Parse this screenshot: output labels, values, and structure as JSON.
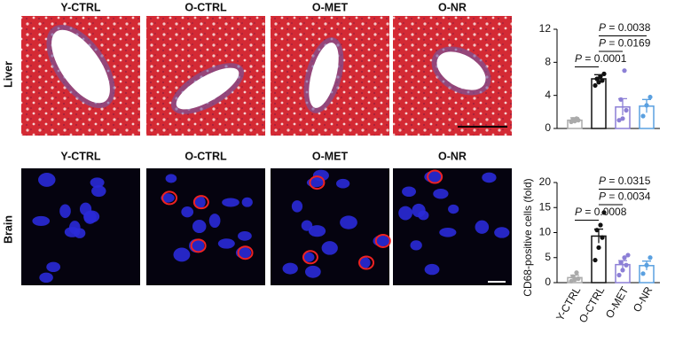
{
  "image_panels": {
    "liver_row": "Liver",
    "brain_row": "Brain",
    "liver_columns": [
      "Y-CTRL",
      "O-CTRL",
      "O-MET",
      "O-NR"
    ],
    "brain_columns": [
      "Y-CTRL",
      "O-CTRL",
      "O-MET",
      "O-NR"
    ]
  },
  "chart_data": [
    {
      "type": "bar",
      "values": [
        1.0,
        6.0,
        2.6,
        2.7
      ],
      "errors": [
        0.3,
        0.5,
        1.0,
        0.8
      ],
      "points": [
        [
          0.8,
          0.9,
          1.0,
          1.1,
          1.2
        ],
        [
          5.2,
          5.6,
          5.8,
          6.0,
          6.3,
          6.6
        ],
        [
          1.0,
          1.2,
          2.2,
          3.5,
          7.0
        ],
        [
          1.5,
          2.8,
          3.8
        ]
      ],
      "colors": [
        "#aaaaaa",
        "#111111",
        "#8c7fd6",
        "#5aa0e0"
      ],
      "ylim": [
        0,
        12
      ],
      "yticks": [
        0,
        4,
        8,
        12
      ],
      "p_values": [
        "P = 0.0038",
        "P = 0.0169",
        "P = 0.0001"
      ]
    },
    {
      "type": "bar",
      "ylabel": "CD68-positive cells (fold)",
      "categories": [
        "Y-CTRL",
        "O-CTRL",
        "O-MET",
        "O-NR"
      ],
      "values": [
        1.0,
        9.3,
        3.6,
        3.4
      ],
      "errors": [
        0.5,
        1.4,
        0.8,
        0.9
      ],
      "points": [
        [
          0.3,
          0.6,
          0.8,
          1.2,
          2.0
        ],
        [
          4.5,
          7.0,
          9.0,
          10.5,
          11.5,
          14.0
        ],
        [
          1.5,
          2.5,
          3.5,
          4.0,
          5.0,
          5.5
        ],
        [
          1.8,
          3.5,
          5.0
        ]
      ],
      "colors": [
        "#aaaaaa",
        "#111111",
        "#8c7fd6",
        "#5aa0e0"
      ],
      "ylim": [
        0,
        20
      ],
      "yticks": [
        0,
        5,
        10,
        15,
        20
      ],
      "p_values": [
        "P = 0.0315",
        "P = 0.0034",
        "P = 0.0008"
      ]
    }
  ]
}
